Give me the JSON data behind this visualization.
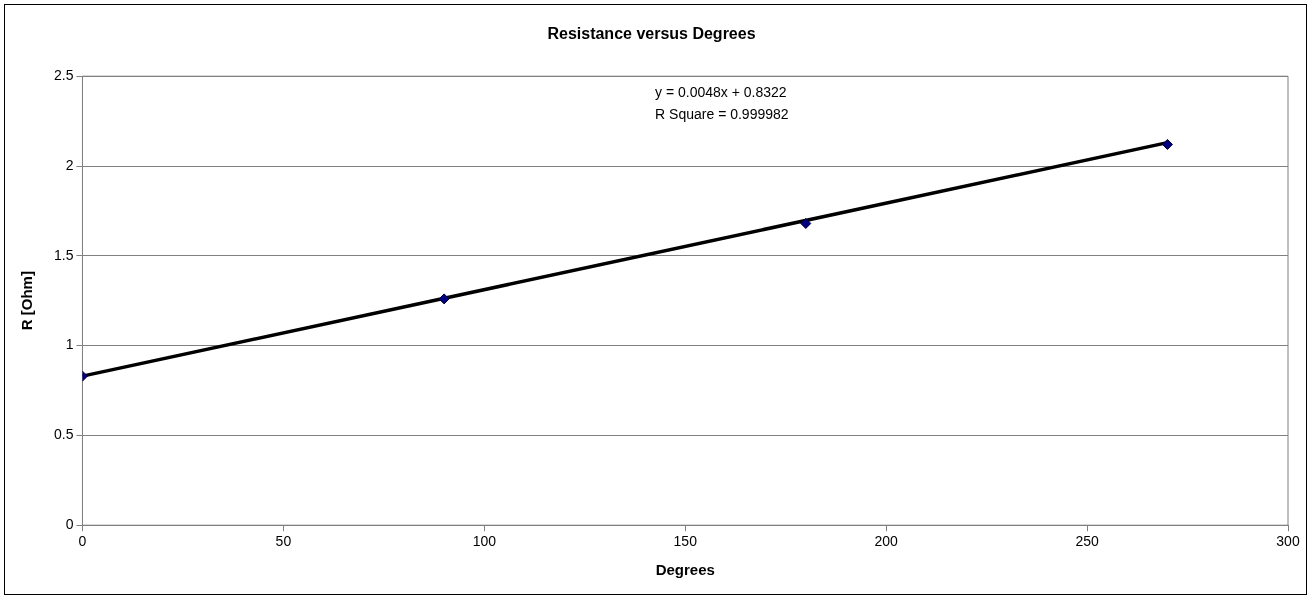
{
  "chart_data": {
    "type": "scatter",
    "title": "Resistance versus Degrees",
    "xlabel": "Degrees",
    "ylabel": "R [Ohm]",
    "x": [
      0,
      90,
      180,
      270
    ],
    "series": [
      {
        "color": "#000080",
        "values": [
          0.83,
          1.26,
          1.68,
          2.12
        ],
        "marker": "diamond"
      },
      {
        "type": "line",
        "color": "#000000",
        "x": [
          0,
          270
        ],
        "values": [
          0.83,
          2.13
        ],
        "marker": "none",
        "line_style": "solid"
      }
    ],
    "xlim": [
      0,
      300
    ],
    "xticks": [
      0,
      50,
      100,
      150,
      200,
      250,
      300
    ],
    "ylim": [
      0,
      2.5
    ],
    "yticks": [
      0,
      0.5,
      1,
      1.5,
      2,
      2.5
    ],
    "grid": "y",
    "legend": false,
    "annotations": [
      "y = 0.0048x + 0.8322",
      "R Square = 0.999982"
    ]
  }
}
